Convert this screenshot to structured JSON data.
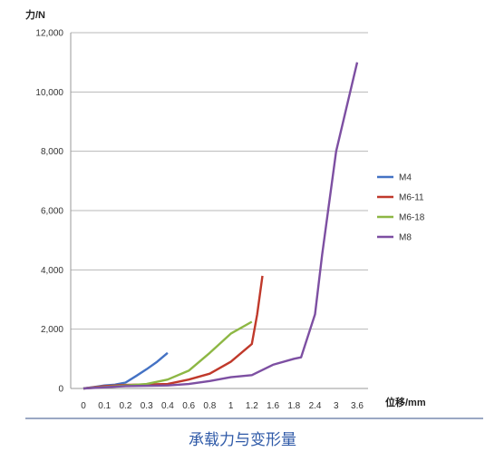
{
  "caption": "承载力与变形量",
  "chart_data": {
    "type": "line",
    "ylabel": "力/N",
    "xlabel": "位移/mm",
    "ylim": [
      0,
      12000
    ],
    "yticks": [
      "0",
      "2,000",
      "4,000",
      "6,000",
      "8,000",
      "10,000",
      "12,000"
    ],
    "categories": [
      "0",
      "0.1",
      "0.2",
      "0.3",
      "0.4",
      "0.6",
      "0.8",
      "1",
      "1.2",
      "1.6",
      "1.8",
      "2.4",
      "3",
      "3.6"
    ],
    "grid": true,
    "legend_position": "right",
    "series": [
      {
        "name": "M4",
        "color": "#4472c4",
        "points": [
          [
            0,
            0
          ],
          [
            0.05,
            50
          ],
          [
            0.1,
            100
          ],
          [
            0.15,
            130
          ],
          [
            0.2,
            200
          ],
          [
            0.25,
            420
          ],
          [
            0.3,
            650
          ],
          [
            0.35,
            900
          ],
          [
            0.4,
            1200
          ]
        ]
      },
      {
        "name": "M6-11",
        "color": "#c0392b",
        "points": [
          [
            0,
            0
          ],
          [
            0.1,
            80
          ],
          [
            0.2,
            120
          ],
          [
            0.4,
            150
          ],
          [
            0.6,
            300
          ],
          [
            0.8,
            500
          ],
          [
            1.0,
            900
          ],
          [
            1.2,
            1500
          ],
          [
            1.3,
            2500
          ],
          [
            1.4,
            3800
          ]
        ]
      },
      {
        "name": "M6-18",
        "color": "#8db744",
        "points": [
          [
            0,
            0
          ],
          [
            0.2,
            100
          ],
          [
            0.3,
            150
          ],
          [
            0.4,
            300
          ],
          [
            0.6,
            600
          ],
          [
            0.8,
            1200
          ],
          [
            1.0,
            1850
          ],
          [
            1.2,
            2250
          ]
        ]
      },
      {
        "name": "M8",
        "color": "#7d4fa2",
        "points": [
          [
            0,
            0
          ],
          [
            0.2,
            80
          ],
          [
            0.4,
            100
          ],
          [
            0.6,
            150
          ],
          [
            0.8,
            250
          ],
          [
            1.0,
            380
          ],
          [
            1.2,
            450
          ],
          [
            1.6,
            800
          ],
          [
            1.8,
            1000
          ],
          [
            2.0,
            1050
          ],
          [
            2.4,
            2500
          ],
          [
            2.6,
            4500
          ],
          [
            3.0,
            8000
          ],
          [
            3.6,
            11000
          ]
        ]
      }
    ]
  }
}
